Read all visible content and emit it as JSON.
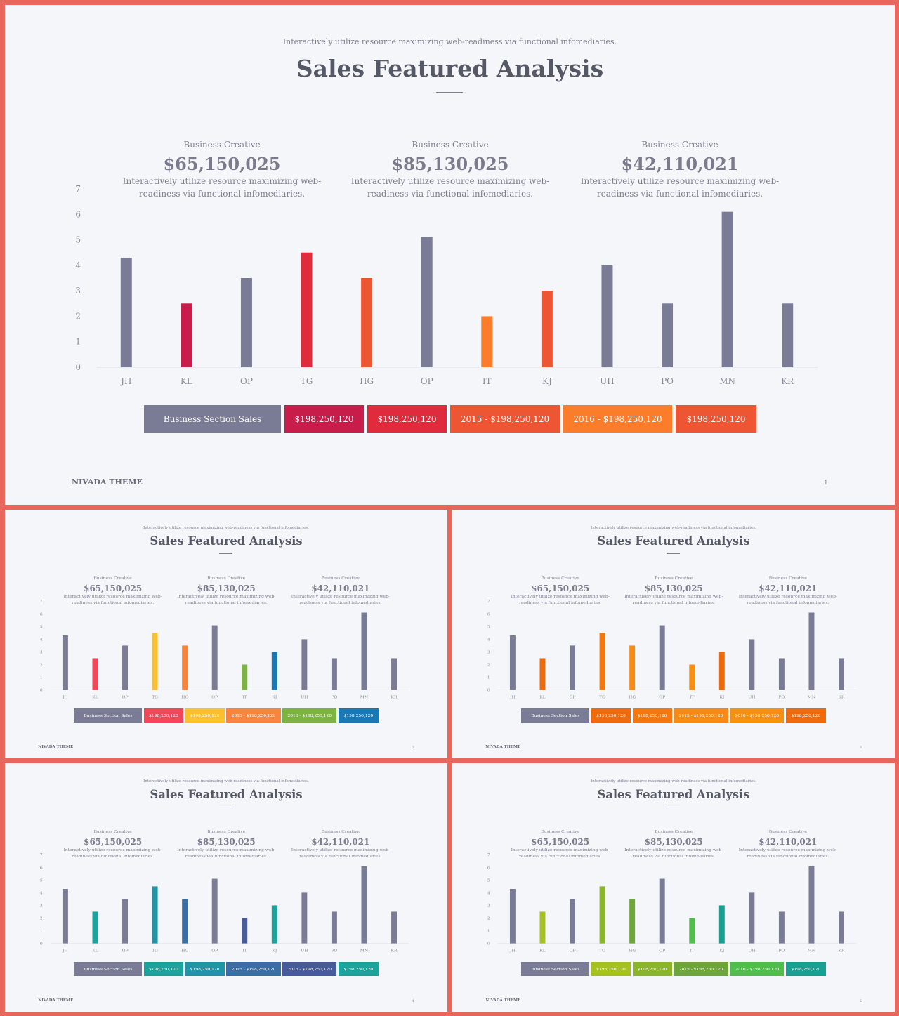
{
  "subtitle": "Interactively utilize resource maximizing web-readiness via functional infomediaries.",
  "title": "Sales Featured Analysis",
  "kpis": [
    {
      "label": "Business Creative",
      "amount": "$65,150,025",
      "desc": "Interactively utilize resource maximizing web-readiness via functional infomediaries."
    },
    {
      "label": "Business Creative",
      "amount": "$85,130,025",
      "desc": "Interactively utilize resource maximizing web-readiness via functional infomediaries."
    },
    {
      "label": "Business Creative",
      "amount": "$42,110,021",
      "desc": "Interactively utilize resource maximizing web-readiness via functional infomediaries."
    }
  ],
  "footer": {
    "brand": "NIVADA THEME"
  },
  "chart_data": {
    "type": "bar",
    "categories": [
      "JH",
      "KL",
      "OP",
      "TG",
      "HG",
      "OP",
      "IT",
      "KJ",
      "UH",
      "PO",
      "MN",
      "KR"
    ],
    "values": [
      4.3,
      2.5,
      3.5,
      4.5,
      3.5,
      5.1,
      2.0,
      3.0,
      4.0,
      2.5,
      6.1,
      2.5
    ],
    "ylim": [
      0,
      7
    ],
    "yticks": [
      "0",
      "1",
      "2",
      "3",
      "4",
      "5",
      "6",
      "7"
    ],
    "grid": false,
    "legend": [
      "Business Section Sales",
      "$198,250,120",
      "$198,250,120",
      "2015 - $198,250,120",
      "2016 - $198,250,120",
      "$198,250,120"
    ]
  },
  "slides": [
    {
      "page": "1",
      "bar_colors": [
        "#7a7c95",
        "#c81c4a",
        "#7a7c95",
        "#df2b3c",
        "#ee5533",
        "#7a7c95",
        "#fb7c2b",
        "#ee5533",
        "#7a7c95",
        "#7a7c95",
        "#7a7c95",
        "#7a7c95"
      ],
      "legend_colors": [
        "#7a7c95",
        "#c81c4a",
        "#df2b3c",
        "#ee5533",
        "#fb7c2b",
        "#ee5533"
      ]
    },
    {
      "page": "2",
      "bar_colors": [
        "#7a7c95",
        "#f0475a",
        "#7a7c95",
        "#fbc02d",
        "#f78540",
        "#7a7c95",
        "#7cb342",
        "#1a78b5",
        "#7a7c95",
        "#7a7c95",
        "#7a7c95",
        "#7a7c95"
      ],
      "legend_colors": [
        "#7a7c95",
        "#f0475a",
        "#fbc02d",
        "#f78540",
        "#7cb342",
        "#1a78b5"
      ]
    },
    {
      "page": "3",
      "bar_colors": [
        "#7a7c95",
        "#f06a0c",
        "#7a7c95",
        "#f5780e",
        "#f78a14",
        "#7a7c95",
        "#f79010",
        "#f06a0c",
        "#7a7c95",
        "#7a7c95",
        "#7a7c95",
        "#7a7c95"
      ],
      "legend_colors": [
        "#7a7c95",
        "#f06a0c",
        "#f5780e",
        "#f78a14",
        "#f79010",
        "#f06a0c"
      ]
    },
    {
      "page": "4",
      "bar_colors": [
        "#7a7c95",
        "#1ba39c",
        "#7a7c95",
        "#2294a8",
        "#3a6ea5",
        "#7a7c95",
        "#475a9a",
        "#1ba39c",
        "#7a7c95",
        "#7a7c95",
        "#7a7c95",
        "#7a7c95"
      ],
      "legend_colors": [
        "#7a7c95",
        "#1ba39c",
        "#2294a8",
        "#3a6ea5",
        "#475a9a",
        "#1ba39c"
      ]
    },
    {
      "page": "5",
      "bar_colors": [
        "#7a7c95",
        "#a6c21f",
        "#7a7c95",
        "#8bb52b",
        "#6ea63a",
        "#7a7c95",
        "#4fbe4a",
        "#18a092",
        "#7a7c95",
        "#7a7c95",
        "#7a7c95",
        "#7a7c95"
      ],
      "legend_colors": [
        "#7a7c95",
        "#a6c21f",
        "#8bb52b",
        "#6ea63a",
        "#4fbe4a",
        "#18a092"
      ]
    }
  ]
}
